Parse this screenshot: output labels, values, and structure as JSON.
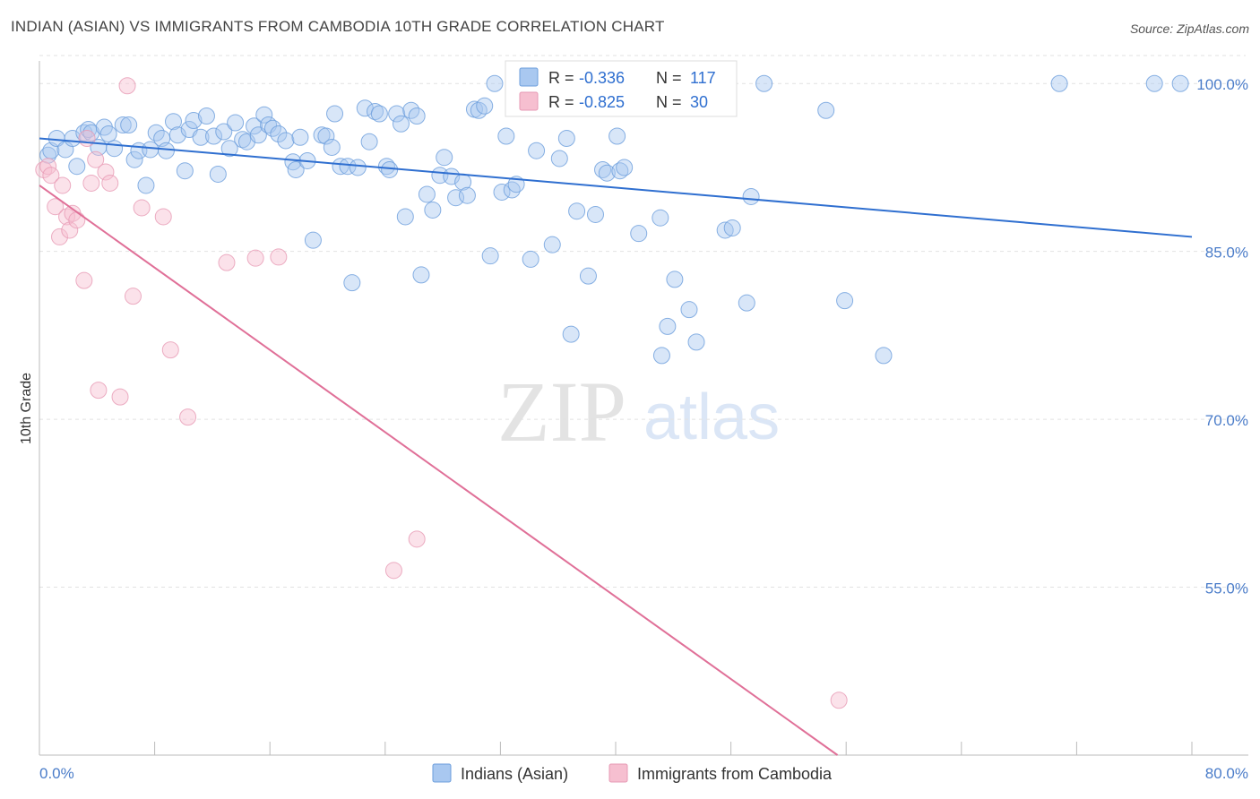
{
  "header": {
    "title": "INDIAN (ASIAN) VS IMMIGRANTS FROM CAMBODIA 10TH GRADE CORRELATION CHART",
    "source": "Source: ZipAtlas.com"
  },
  "watermark": {
    "zip": "ZIP",
    "atlas": "atlas"
  },
  "legend": {
    "r_label": "R =",
    "n_label": "N =",
    "rows": [
      {
        "r": "-0.336",
        "n": "117",
        "color": "#a9c8f0"
      },
      {
        "r": "-0.825",
        "n": "30",
        "color": "#f6bfd0"
      }
    ]
  },
  "colors": {
    "blue_point": "#a9c8f0",
    "blue_line": "#2f6fd0",
    "pink_point": "#f6bfd0",
    "pink_line": "#e07098",
    "tick_label": "#4a7cc9"
  },
  "chart_data": {
    "type": "scatter",
    "title": "INDIAN (ASIAN) VS IMMIGRANTS FROM CAMBODIA 10TH GRADE CORRELATION CHART",
    "xlabel": "",
    "ylabel": "10th Grade",
    "xlim": [
      0,
      80
    ],
    "ylim": [
      40,
      102.5
    ],
    "x_tick_labels": [
      "0.0%",
      "80.0%"
    ],
    "y_ticks": [
      55,
      70,
      85,
      100
    ],
    "y_tick_labels": [
      "55.0%",
      "70.0%",
      "85.0%",
      "100.0%"
    ],
    "grid": true,
    "legend_position": "top-center",
    "series": [
      {
        "name": "Indians (Asian)",
        "color": "#a9c8f0",
        "trend": {
          "x": [
            0,
            80
          ],
          "y": [
            95.1,
            86.3
          ]
        },
        "points": [
          [
            0.6,
            93.6
          ],
          [
            0.8,
            94.0
          ],
          [
            1.2,
            95.1
          ],
          [
            1.8,
            94.1
          ],
          [
            2.3,
            95.1
          ],
          [
            2.6,
            92.6
          ],
          [
            3.1,
            95.6
          ],
          [
            3.4,
            95.9
          ],
          [
            3.6,
            95.6
          ],
          [
            4.1,
            94.3
          ],
          [
            4.5,
            96.1
          ],
          [
            4.8,
            95.5
          ],
          [
            5.2,
            94.2
          ],
          [
            5.8,
            96.3
          ],
          [
            6.2,
            96.3
          ],
          [
            6.6,
            93.2
          ],
          [
            6.9,
            94.0
          ],
          [
            7.4,
            90.9
          ],
          [
            7.7,
            94.1
          ],
          [
            8.1,
            95.6
          ],
          [
            8.5,
            95.1
          ],
          [
            8.8,
            94.0
          ],
          [
            9.3,
            96.6
          ],
          [
            9.6,
            95.4
          ],
          [
            10.1,
            92.2
          ],
          [
            10.4,
            95.9
          ],
          [
            10.7,
            96.7
          ],
          [
            11.2,
            95.2
          ],
          [
            11.6,
            97.1
          ],
          [
            12.1,
            95.3
          ],
          [
            12.4,
            91.9
          ],
          [
            12.8,
            95.7
          ],
          [
            13.2,
            94.2
          ],
          [
            13.6,
            96.5
          ],
          [
            14.1,
            95.0
          ],
          [
            14.4,
            94.8
          ],
          [
            14.9,
            96.2
          ],
          [
            15.2,
            95.4
          ],
          [
            15.6,
            97.2
          ],
          [
            15.9,
            96.3
          ],
          [
            16.2,
            96.0
          ],
          [
            16.6,
            95.5
          ],
          [
            17.1,
            94.9
          ],
          [
            17.6,
            93.0
          ],
          [
            17.8,
            92.3
          ],
          [
            18.1,
            95.2
          ],
          [
            18.6,
            93.1
          ],
          [
            19.0,
            86.0
          ],
          [
            19.6,
            95.4
          ],
          [
            19.9,
            95.3
          ],
          [
            20.3,
            94.3
          ],
          [
            20.5,
            97.3
          ],
          [
            20.9,
            92.6
          ],
          [
            21.4,
            92.6
          ],
          [
            21.7,
            82.2
          ],
          [
            22.1,
            92.5
          ],
          [
            22.6,
            97.8
          ],
          [
            22.9,
            94.8
          ],
          [
            23.3,
            97.5
          ],
          [
            23.6,
            97.3
          ],
          [
            24.1,
            92.6
          ],
          [
            24.3,
            92.3
          ],
          [
            24.8,
            97.3
          ],
          [
            25.1,
            96.4
          ],
          [
            25.4,
            88.1
          ],
          [
            25.8,
            97.6
          ],
          [
            26.2,
            97.1
          ],
          [
            26.5,
            82.9
          ],
          [
            26.9,
            90.1
          ],
          [
            27.3,
            88.7
          ],
          [
            27.8,
            91.8
          ],
          [
            28.1,
            93.4
          ],
          [
            28.6,
            91.7
          ],
          [
            28.9,
            89.8
          ],
          [
            29.4,
            91.2
          ],
          [
            29.7,
            90.0
          ],
          [
            30.2,
            97.7
          ],
          [
            30.5,
            97.6
          ],
          [
            30.9,
            98.0
          ],
          [
            31.3,
            84.6
          ],
          [
            31.6,
            100.0
          ],
          [
            32.1,
            90.3
          ],
          [
            32.4,
            95.3
          ],
          [
            32.8,
            90.5
          ],
          [
            33.1,
            91.0
          ],
          [
            34.1,
            84.3
          ],
          [
            34.5,
            94.0
          ],
          [
            35.6,
            85.6
          ],
          [
            36.1,
            93.3
          ],
          [
            36.6,
            95.1
          ],
          [
            36.9,
            77.6
          ],
          [
            37.3,
            88.6
          ],
          [
            38.1,
            82.8
          ],
          [
            38.6,
            88.3
          ],
          [
            39.1,
            92.3
          ],
          [
            39.4,
            92.0
          ],
          [
            40.1,
            95.3
          ],
          [
            40.3,
            92.2
          ],
          [
            40.6,
            92.5
          ],
          [
            41.6,
            86.6
          ],
          [
            43.1,
            88.0
          ],
          [
            43.2,
            75.7
          ],
          [
            43.6,
            78.3
          ],
          [
            44.1,
            82.5
          ],
          [
            45.1,
            79.8
          ],
          [
            45.6,
            76.9
          ],
          [
            47.6,
            86.9
          ],
          [
            48.1,
            87.1
          ],
          [
            49.1,
            80.4
          ],
          [
            49.4,
            89.9
          ],
          [
            50.3,
            100.0
          ],
          [
            54.6,
            97.6
          ],
          [
            55.9,
            80.6
          ],
          [
            58.6,
            75.7
          ],
          [
            70.8,
            100.0
          ],
          [
            77.4,
            100.0
          ],
          [
            79.2,
            100.0
          ]
        ]
      },
      {
        "name": "Immigrants from Cambodia",
        "color": "#f6bfd0",
        "trend": {
          "x": [
            0,
            55.4
          ],
          "y": [
            90.9,
            40.0
          ]
        },
        "points": [
          [
            0.3,
            92.3
          ],
          [
            0.6,
            92.6
          ],
          [
            0.8,
            91.8
          ],
          [
            1.1,
            89.0
          ],
          [
            1.4,
            86.3
          ],
          [
            1.6,
            90.9
          ],
          [
            1.9,
            88.1
          ],
          [
            2.1,
            86.9
          ],
          [
            2.3,
            88.4
          ],
          [
            2.6,
            87.8
          ],
          [
            3.1,
            82.4
          ],
          [
            3.3,
            95.1
          ],
          [
            3.6,
            91.1
          ],
          [
            3.9,
            93.2
          ],
          [
            4.1,
            72.6
          ],
          [
            4.6,
            92.1
          ],
          [
            4.9,
            91.1
          ],
          [
            5.6,
            72.0
          ],
          [
            6.1,
            99.8
          ],
          [
            6.5,
            81.0
          ],
          [
            7.1,
            88.9
          ],
          [
            8.6,
            88.1
          ],
          [
            9.1,
            76.2
          ],
          [
            10.3,
            70.2
          ],
          [
            13.0,
            84.0
          ],
          [
            15.0,
            84.4
          ],
          [
            16.6,
            84.5
          ],
          [
            24.6,
            56.5
          ],
          [
            26.2,
            59.3
          ],
          [
            55.5,
            44.9
          ]
        ]
      }
    ]
  }
}
